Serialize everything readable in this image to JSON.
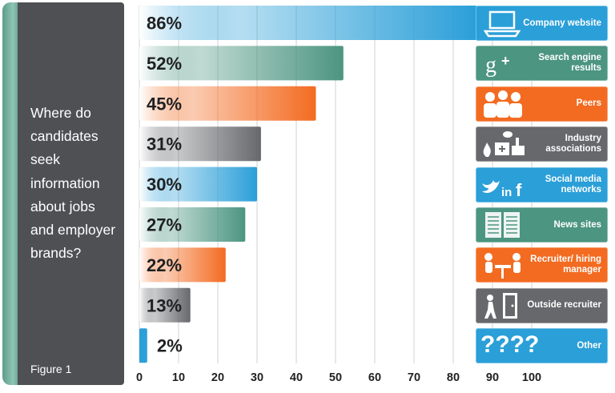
{
  "panel": {
    "question": "Where do candidates seek information about jobs and employer brands?",
    "figure_label": "Figure 1"
  },
  "chart_data": {
    "type": "bar",
    "orientation": "horizontal",
    "title": "",
    "xlabel": "",
    "ylabel": "",
    "xlim": [
      0,
      100
    ],
    "x_ticks": [
      0,
      10,
      20,
      30,
      40,
      50,
      60,
      70,
      80,
      90,
      100
    ],
    "grid": true,
    "categories": [
      "Company website",
      "Search engine results",
      "Peers",
      "Industry associations",
      "Social media networks",
      "News sites",
      "Recruiter/ hiring manager",
      "Outside recruiter",
      "Other"
    ],
    "values": [
      86,
      52,
      45,
      31,
      30,
      27,
      22,
      13,
      2
    ],
    "value_labels": [
      "86%",
      "52%",
      "45%",
      "31%",
      "30%",
      "27%",
      "22%",
      "13%",
      "2%"
    ],
    "colors": [
      "#2b9fd8",
      "#4c9580",
      "#f36b21",
      "#67686c",
      "#2b9fd8",
      "#4c9580",
      "#f36b21",
      "#67686c",
      "#2b9fd8"
    ]
  },
  "legend_tiles": [
    {
      "label": "Company website",
      "icon": "laptop-icon",
      "color": "#2b9fd8"
    },
    {
      "label": "Search engine results",
      "icon": "google-plus-icon",
      "color": "#4c9580"
    },
    {
      "label": "Peers",
      "icon": "people-icon",
      "color": "#f36b21"
    },
    {
      "label": "Industry associations",
      "icon": "industry-icon",
      "color": "#67686c"
    },
    {
      "label": "Social media networks",
      "icon": "social-media-icon",
      "color": "#2b9fd8"
    },
    {
      "label": "News sites",
      "icon": "newspaper-icon",
      "color": "#4c9580"
    },
    {
      "label": "Recruiter/ hiring manager",
      "icon": "interview-icon",
      "color": "#f36b21"
    },
    {
      "label": "Outside recruiter",
      "icon": "door-walker-icon",
      "color": "#67686c"
    },
    {
      "label": "Other",
      "icon": "question-marks-icon",
      "color": "#2b9fd8",
      "icon_text": "????"
    }
  ]
}
